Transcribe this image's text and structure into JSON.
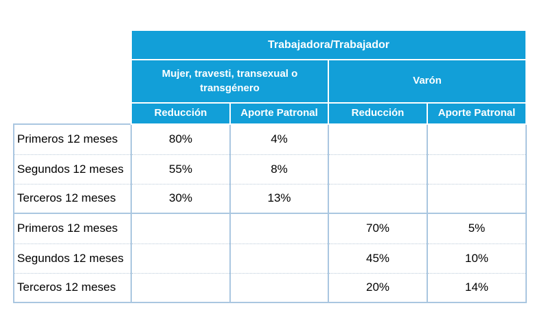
{
  "header": {
    "title": "Trabajadora/Trabajador",
    "groups": [
      {
        "label": "Mujer, travesti, transexual o transgénero"
      },
      {
        "label": "Varón"
      }
    ],
    "columns": [
      "Reducción",
      "Aporte Patronal",
      "Reducción",
      "Aporte Patronal"
    ]
  },
  "rows": [
    {
      "label": "Primeros 12 meses",
      "values": [
        "80%",
        "4%",
        "",
        ""
      ]
    },
    {
      "label": "Segundos 12 meses",
      "values": [
        "55%",
        "8%",
        "",
        ""
      ]
    },
    {
      "label": "Terceros 12 meses",
      "values": [
        "30%",
        "13%",
        "",
        ""
      ]
    },
    {
      "label": "Primeros 12 meses",
      "values": [
        "",
        "",
        "70%",
        "5%"
      ]
    },
    {
      "label": "Segundos 12 meses",
      "values": [
        "",
        "",
        "45%",
        "10%"
      ]
    },
    {
      "label": "Terceros 12 meses",
      "values": [
        "",
        "",
        "20%",
        "14%"
      ]
    }
  ],
  "colors": {
    "header_bg": "#129fd8",
    "header_text": "#ffffff",
    "grid_line": "#a9c6e0"
  }
}
